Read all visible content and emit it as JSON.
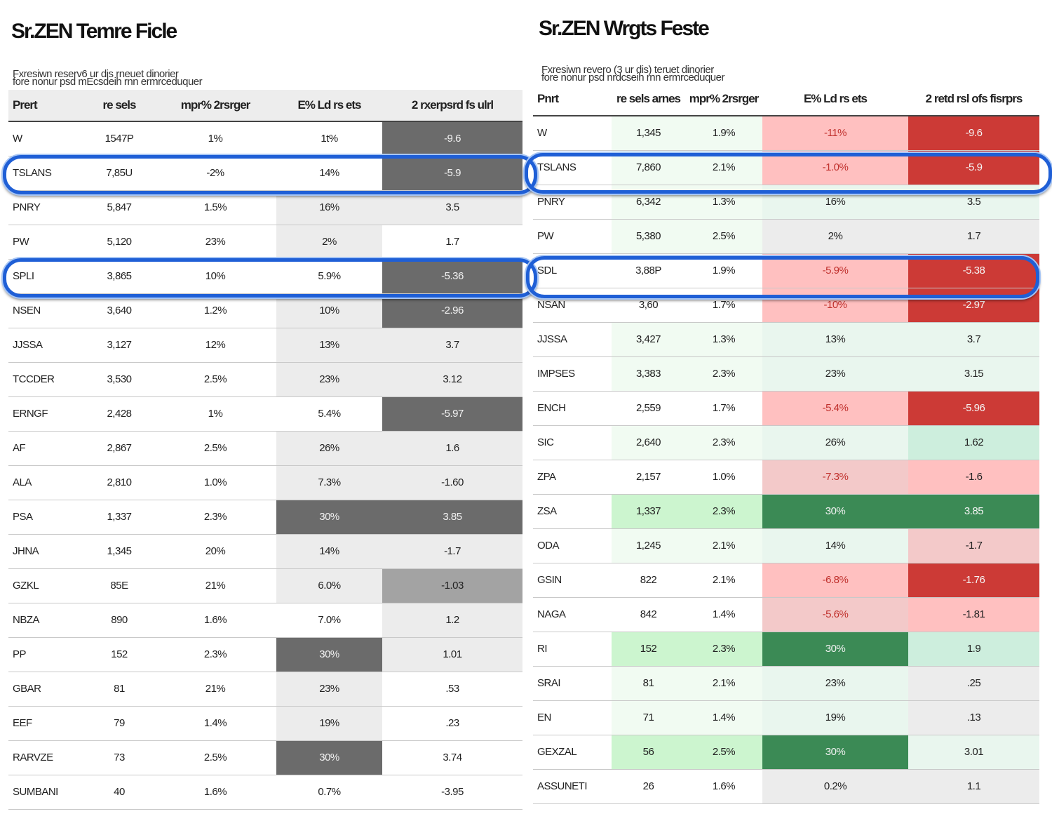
{
  "left": {
    "title": "Sr.ZEN Temre Ficle",
    "subtitle_lines": [
      "Fxresiwn reserv6 ur dis rneuet dinorier",
      "fore nonur psd mEcsdeih rnn ermrceduquer"
    ],
    "columns": [
      "Prert",
      "re sels",
      "mpr% 2rsrger",
      "E% Ld rs ets",
      "2 rxerpsrd fs ulrl"
    ],
    "rows": [
      {
        "name": "W",
        "c1": "1547P",
        "c2": "1%",
        "c3": "1t%",
        "c4": "-9.6",
        "s3": 0,
        "s4": 3
      },
      {
        "name": "TSLANS",
        "c1": "7,85U",
        "c2": "-2%",
        "c3": "14%",
        "c4": "-5.9",
        "s3": 0,
        "s4": 3
      },
      {
        "name": "PNRY",
        "c1": "5,847",
        "c2": "1.5%",
        "c3": "16%",
        "c4": "3.5",
        "s3": 1,
        "s4": 1
      },
      {
        "name": "PW",
        "c1": "5,120",
        "c2": "23%",
        "c3": "2%",
        "c4": "1.7",
        "s3": 1,
        "s4": 0
      },
      {
        "name": "SPLI",
        "c1": "3,865",
        "c2": "10%",
        "c3": "5.9%",
        "c4": "-5.36",
        "s3": 0,
        "s4": 3
      },
      {
        "name": "NSEN",
        "c1": "3,640",
        "c2": "1.2%",
        "c3": "10%",
        "c4": "-2.96",
        "s3": 1,
        "s4": 3
      },
      {
        "name": "JJSSA",
        "c1": "3,127",
        "c2": "12%",
        "c3": "13%",
        "c4": "3.7",
        "s3": 1,
        "s4": 1
      },
      {
        "name": "TCCDER",
        "c1": "3,530",
        "c2": "2.5%",
        "c3": "23%",
        "c4": "3.12",
        "s3": 1,
        "s4": 1
      },
      {
        "name": "ERNGF",
        "c1": "2,428",
        "c2": "1%",
        "c3": "5.4%",
        "c4": "-5.97",
        "s3": 0,
        "s4": 3
      },
      {
        "name": "AF",
        "c1": "2,867",
        "c2": "2.5%",
        "c3": "26%",
        "c4": "1.6",
        "s3": 1,
        "s4": 1
      },
      {
        "name": "ALA",
        "c1": "2,810",
        "c2": "1.0%",
        "c3": "7.3%",
        "c4": "-1.60",
        "s3": 1,
        "s4": 1
      },
      {
        "name": "PSA",
        "c1": "1,337",
        "c2": "2.3%",
        "c3": "30%",
        "c4": "3.85",
        "s3": 3,
        "s4": 3
      },
      {
        "name": "JHNA",
        "c1": "1,345",
        "c2": "20%",
        "c3": "14%",
        "c4": "-1.7",
        "s3": 1,
        "s4": 1
      },
      {
        "name": "GZKL",
        "c1": "85E",
        "c2": "21%",
        "c3": "6.0%",
        "c4": "-1.03",
        "s3": 1,
        "s4": 2
      },
      {
        "name": "NBZA",
        "c1": "890",
        "c2": "1.6%",
        "c3": "7.0%",
        "c4": "1.2",
        "s3": 0,
        "s4": 1
      },
      {
        "name": "PP",
        "c1": "152",
        "c2": "2.3%",
        "c3": "30%",
        "c4": "1.01",
        "s3": 3,
        "s4": 1
      },
      {
        "name": "GBAR",
        "c1": "81",
        "c2": "21%",
        "c3": "23%",
        "c4": ".53",
        "s3": 1,
        "s4": 0
      },
      {
        "name": "EEF",
        "c1": "79",
        "c2": "1.4%",
        "c3": "19%",
        "c4": ".23",
        "s3": 1,
        "s4": 0
      },
      {
        "name": "RARVZE",
        "c1": "73",
        "c2": "2.5%",
        "c3": "30%",
        "c4": "3.74",
        "s3": 3,
        "s4": 0
      },
      {
        "name": "SUMBANI",
        "c1": "40",
        "c2": "1.6%",
        "c3": "0.7%",
        "c4": "-3.95",
        "s3": 0,
        "s4": 0
      }
    ]
  },
  "right": {
    "title": "Sr.ZEN Wrgts Feste",
    "subtitle_lines": [
      "Fxresiwn revero (3 ur dis) teruet dinorier",
      "fore nonur psd nrdcseih rnn ermrceduquer"
    ],
    "columns": [
      "Pnrt",
      "re sels arnes",
      "mpr% 2rsrger",
      "E% Ld rs ets",
      "2 retd rsl ofs fisrprs"
    ],
    "rows": [
      {
        "name": "W",
        "c1": "1,345",
        "c2": "1.9%",
        "c3": "-11%",
        "c4": "-9.6",
        "s1": 1,
        "s2": 1,
        "s3": -2,
        "s4": -3
      },
      {
        "name": "TSLANS",
        "c1": "7,860",
        "c2": "2.1%",
        "c3": "-1.0%",
        "c4": "-5.9",
        "s1": 1,
        "s2": 1,
        "s3": -2,
        "s4": -3
      },
      {
        "name": "PNRY",
        "c1": "6,342",
        "c2": "1.3%",
        "c3": "16%",
        "c4": "3.5",
        "s1": 1,
        "s2": 1,
        "s3": 1,
        "s4": 1
      },
      {
        "name": "PW",
        "c1": "5,380",
        "c2": "2.5%",
        "c3": "2%",
        "c4": "1.7",
        "s1": 1,
        "s2": 1,
        "s3": 0,
        "s4": 0
      },
      {
        "name": "SDL",
        "c1": "3,88P",
        "c2": "1.9%",
        "c3": "-5.9%",
        "c4": "-5.38",
        "s1": 0,
        "s2": 0,
        "s3": -2,
        "s4": -3
      },
      {
        "name": "NSAN",
        "c1": "3,60",
        "c2": "1.7%",
        "c3": "-10%",
        "c4": "-2.97",
        "s1": 0,
        "s2": 0,
        "s3": -2,
        "s4": -3
      },
      {
        "name": "JJSSA",
        "c1": "3,427",
        "c2": "1.3%",
        "c3": "13%",
        "c4": "3.7",
        "s1": 1,
        "s2": 1,
        "s3": 1,
        "s4": 1
      },
      {
        "name": "IMPSES",
        "c1": "3,383",
        "c2": "2.3%",
        "c3": "23%",
        "c4": "3.15",
        "s1": 1,
        "s2": 1,
        "s3": 1,
        "s4": 1
      },
      {
        "name": "ENCH",
        "c1": "2,559",
        "c2": "1.7%",
        "c3": "-5.4%",
        "c4": "-5.96",
        "s1": 0,
        "s2": 0,
        "s3": -2,
        "s4": -3
      },
      {
        "name": "SIC",
        "c1": "2,640",
        "c2": "2.3%",
        "c3": "26%",
        "c4": "1.62",
        "s1": 1,
        "s2": 1,
        "s3": 1,
        "s4": 2
      },
      {
        "name": "ZPA",
        "c1": "2,157",
        "c2": "1.0%",
        "c3": "-7.3%",
        "c4": "-1.6",
        "s1": 0,
        "s2": 0,
        "s3": -1,
        "s4": -2
      },
      {
        "name": "ZSA",
        "c1": "1,337",
        "c2": "2.3%",
        "c3": "30%",
        "c4": "3.85",
        "s1": 2,
        "s2": 2,
        "s3": 3,
        "s4": 3
      },
      {
        "name": "ODA",
        "c1": "1,245",
        "c2": "2.1%",
        "c3": "14%",
        "c4": "-1.7",
        "s1": 1,
        "s2": 1,
        "s3": 1,
        "s4": -1
      },
      {
        "name": "GSIN",
        "c1": "822",
        "c2": "2.1%",
        "c3": "-6.8%",
        "c4": "-1.76",
        "s1": 0,
        "s2": 0,
        "s3": -2,
        "s4": -3
      },
      {
        "name": "NAGA",
        "c1": "842",
        "c2": "1.4%",
        "c3": "-5.6%",
        "c4": "-1.81",
        "s1": 0,
        "s2": 0,
        "s3": -1,
        "s4": -2
      },
      {
        "name": "RI",
        "c1": "152",
        "c2": "2.3%",
        "c3": "30%",
        "c4": "1.9",
        "s1": 2,
        "s2": 2,
        "s3": 3,
        "s4": 2
      },
      {
        "name": "SRAI",
        "c1": "81",
        "c2": "2.1%",
        "c3": "23%",
        "c4": ".25",
        "s1": 1,
        "s2": 1,
        "s3": 1,
        "s4": 0
      },
      {
        "name": "EN",
        "c1": "71",
        "c2": "1.4%",
        "c3": "19%",
        "c4": ".13",
        "s1": 1,
        "s2": 1,
        "s3": 1,
        "s4": 0
      },
      {
        "name": "GEXZAL",
        "c1": "56",
        "c2": "2.5%",
        "c3": "30%",
        "c4": "3.01",
        "s1": 2,
        "s2": 2,
        "s3": 3,
        "s4": 1
      },
      {
        "name": "ASSUNETI",
        "c1": "26",
        "c2": "1.6%",
        "c3": "0.2%",
        "c4": "1.1",
        "s1": 0,
        "s2": 0,
        "s3": 0,
        "s4": 0
      }
    ]
  },
  "colors": {
    "grey_levels": [
      "#ffffff",
      "#ececec",
      "#a3a3a3",
      "#6b6b6b"
    ],
    "grey_text": [
      "#222222",
      "#222222",
      "#222222",
      "#f2f2f2"
    ],
    "pos_levels": [
      "#ffffff",
      "#e9f6ee",
      "#cdeedd",
      "#3b8a55"
    ],
    "neg_levels": [
      "#ffffff",
      "#f3c9c9",
      "#ffc0c0",
      "#cc3a36"
    ],
    "green_light": [
      "#ffffff",
      "#f1fbf2",
      "#ccf5cf"
    ],
    "highlight": "#1f5fd6"
  }
}
